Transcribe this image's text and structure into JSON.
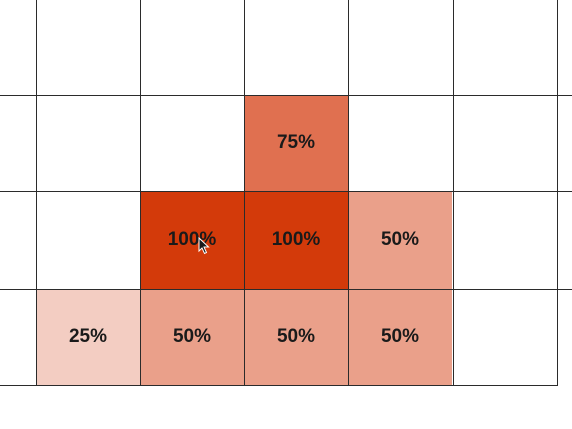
{
  "grid": {
    "rows": 4,
    "cols": 6,
    "colors": {
      "100": "#d33a0a",
      "75": "#e07050",
      "50": "#eaa08a",
      "25": "#f3cdc2"
    },
    "cells": [
      {
        "row": 1,
        "col": 2,
        "level": 75,
        "label": "75%"
      },
      {
        "row": 2,
        "col": 1,
        "level": 100,
        "label": "100%"
      },
      {
        "row": 2,
        "col": 2,
        "level": 100,
        "label": "100%"
      },
      {
        "row": 2,
        "col": 3,
        "level": 50,
        "label": "50%"
      },
      {
        "row": 3,
        "col": 0,
        "level": 25,
        "label": "25%"
      },
      {
        "row": 3,
        "col": 1,
        "level": 50,
        "label": "50%"
      },
      {
        "row": 3,
        "col": 2,
        "level": 50,
        "label": "50%"
      },
      {
        "row": 3,
        "col": 3,
        "level": 50,
        "label": "50%"
      }
    ]
  },
  "cursor": {
    "icon": "mouse-pointer-icon"
  }
}
